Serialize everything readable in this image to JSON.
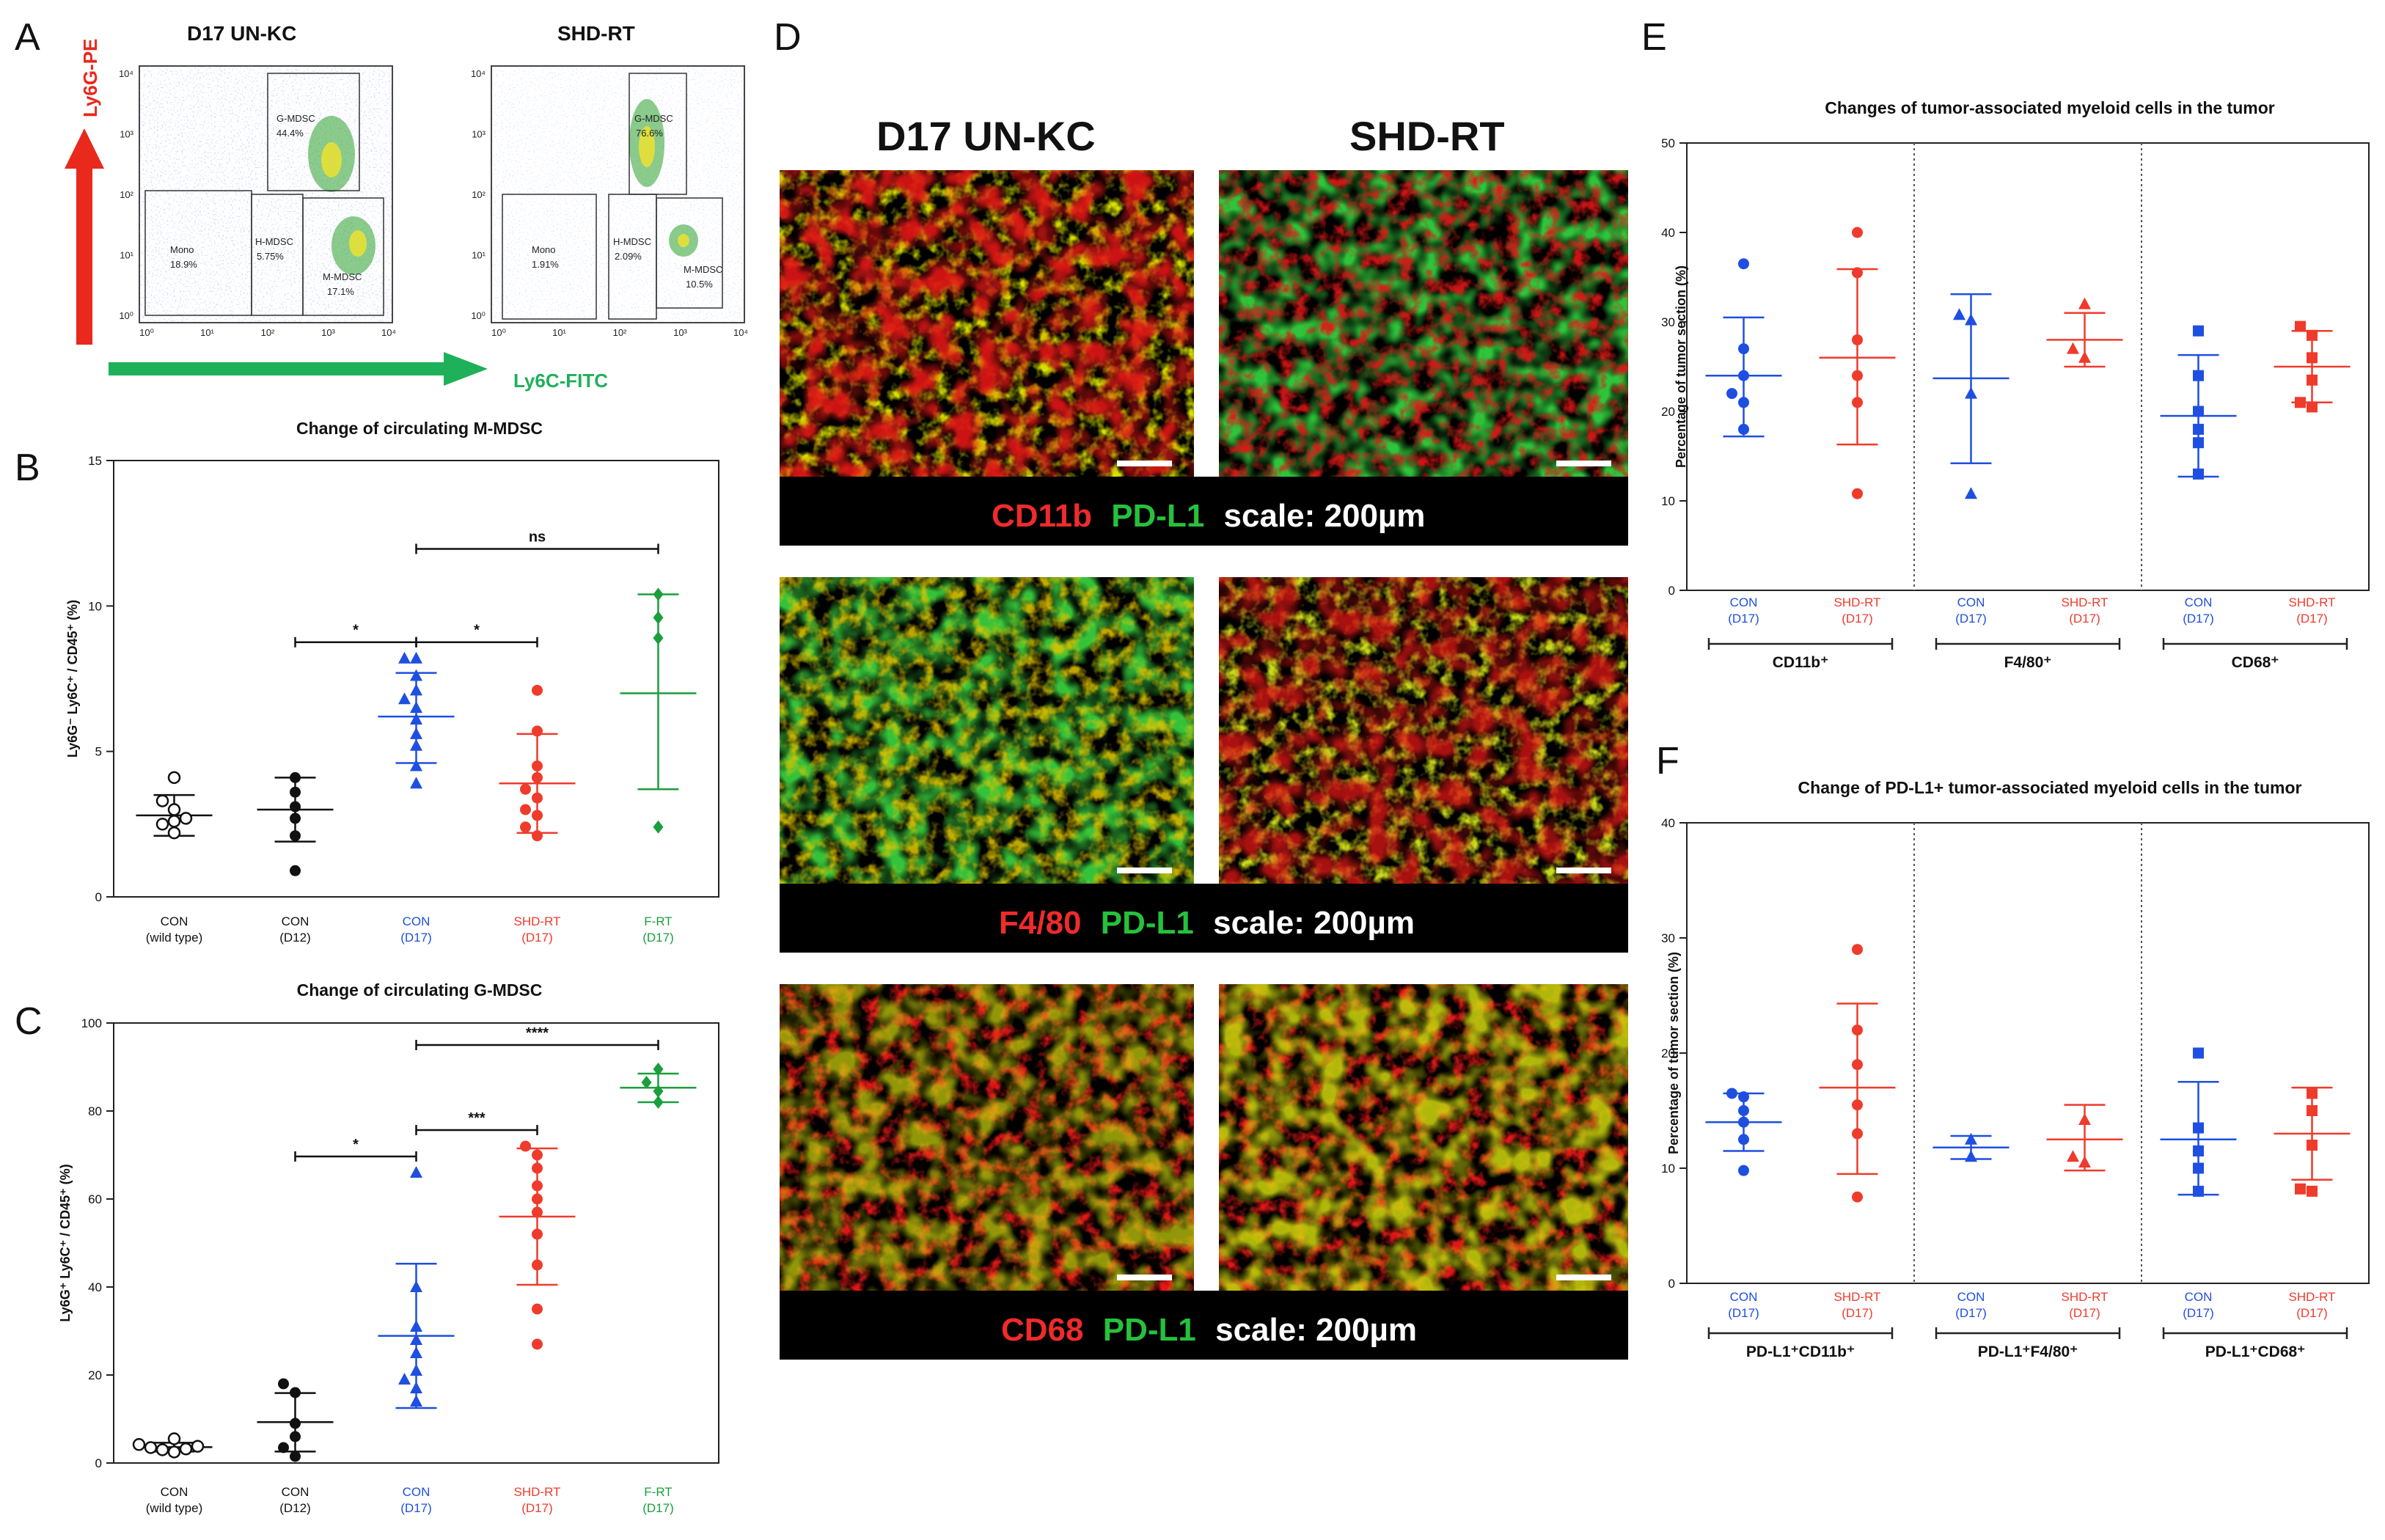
{
  "colors": {
    "black": "#111111",
    "blue": "#1e4fe0",
    "red": "#ef3b2c",
    "green": "#1b9e3c",
    "flow_arrow_red": "#e8291c",
    "flow_arrow_green": "#1fb05a"
  },
  "panel_letters": {
    "a": "A",
    "b": "B",
    "c": "C",
    "d": "D",
    "e": "E",
    "f": "F"
  },
  "panel_a": {
    "titles": [
      "D17 UN-KC",
      "SHD-RT"
    ],
    "y_axis_name": "Ly6G-PE",
    "x_axis_name": "Ly6C-FITC",
    "tick_labels": [
      "10⁰",
      "10¹",
      "10²",
      "10³",
      "10⁴"
    ],
    "plots": [
      {
        "gates": [
          {
            "name": "G-MDSC",
            "pct": "44.4%"
          },
          {
            "name": "Mono",
            "pct": "18.9%"
          },
          {
            "name": "H-MDSC",
            "pct": "5.75%"
          },
          {
            "name": "M-MDSC",
            "pct": "17.1%"
          }
        ]
      },
      {
        "gates": [
          {
            "name": "G-MDSC",
            "pct": "76.6%"
          },
          {
            "name": "Mono",
            "pct": "1.91%"
          },
          {
            "name": "H-MDSC",
            "pct": "2.09%"
          },
          {
            "name": "M-MDSC",
            "pct": "10.5%"
          }
        ]
      }
    ]
  },
  "panel_d": {
    "column_titles": [
      "D17 UN-KC",
      "SHD-RT"
    ],
    "rows": [
      {
        "marker": "CD11b",
        "stain": "PD-L1",
        "scale": "scale: 200µm"
      },
      {
        "marker": "F4/80",
        "stain": "PD-L1",
        "scale": "scale: 200µm"
      },
      {
        "marker": "CD68",
        "stain": "PD-L1",
        "scale": "scale: 200µm"
      }
    ]
  },
  "chart_data": [
    {
      "panel": "B",
      "type": "scatter",
      "title": "Change of circulating M-MDSC",
      "ylabel": "Ly6G⁻ Ly6C⁺ / CD45⁺ (%)",
      "ylim": [
        0,
        15
      ],
      "yticks": [
        0,
        5,
        10,
        15
      ],
      "categories": [
        {
          "label": "CON",
          "sub": "(wild type)",
          "color": "#111111",
          "marker": "circle-open"
        },
        {
          "label": "CON",
          "sub": "(D12)",
          "color": "#111111",
          "marker": "circle"
        },
        {
          "label": "CON",
          "sub": "(D17)",
          "color": "#1e4fe0",
          "marker": "triangle"
        },
        {
          "label": "SHD-RT",
          "sub": "(D17)",
          "color": "#ef3b2c",
          "marker": "circle"
        },
        {
          "label": "F-RT",
          "sub": "(D17)",
          "color": "#1b9e3c",
          "marker": "diamond"
        }
      ],
      "series": [
        {
          "points": [
            2.2,
            2.5,
            2.6,
            2.7,
            3.0,
            3.3,
            4.1
          ],
          "mean": 2.8,
          "sd_low": 2.1,
          "sd_high": 3.5
        },
        {
          "points": [
            0.9,
            2.1,
            2.7,
            3.1,
            3.6,
            4.1
          ],
          "mean": 3.0,
          "sd_low": 1.9,
          "sd_high": 4.1
        },
        {
          "points": [
            3.9,
            4.5,
            5.2,
            5.6,
            6.1,
            6.5,
            6.8,
            7.1,
            7.6,
            8.2,
            8.2
          ],
          "mean": 6.2,
          "sd_low": 4.6,
          "sd_high": 7.7
        },
        {
          "points": [
            2.1,
            2.4,
            2.8,
            3.0,
            3.4,
            3.7,
            4.1,
            4.5,
            5.7,
            7.1
          ],
          "mean": 3.9,
          "sd_low": 2.2,
          "sd_high": 5.6
        },
        {
          "points": [
            2.4,
            8.9,
            9.6,
            10.4
          ],
          "mean": 7.0,
          "sd_low": 3.7,
          "sd_high": 10.4
        }
      ],
      "significance": [
        {
          "from": 1,
          "to": 2,
          "label": "*"
        },
        {
          "from": 2,
          "to": 3,
          "label": "*"
        },
        {
          "from": 2,
          "to": 4,
          "label": "ns"
        }
      ]
    },
    {
      "panel": "C",
      "type": "scatter",
      "title": "Change of circulating G-MDSC",
      "ylabel": "Ly6G⁺ Ly6C⁺ / CD45⁺ (%)",
      "ylim": [
        0,
        100
      ],
      "yticks": [
        0,
        20,
        40,
        60,
        80,
        100
      ],
      "categories": [
        {
          "label": "CON",
          "sub": "(wild type)",
          "color": "#111111",
          "marker": "circle-open"
        },
        {
          "label": "CON",
          "sub": "(D12)",
          "color": "#111111",
          "marker": "circle"
        },
        {
          "label": "CON",
          "sub": "(D17)",
          "color": "#1e4fe0",
          "marker": "triangle"
        },
        {
          "label": "SHD-RT",
          "sub": "(D17)",
          "color": "#ef3b2c",
          "marker": "circle"
        },
        {
          "label": "F-RT",
          "sub": "(D17)",
          "color": "#1b9e3c",
          "marker": "diamond"
        }
      ],
      "series": [
        {
          "points": [
            2.5,
            3.0,
            3.2,
            3.5,
            3.8,
            4.2,
            5.5
          ],
          "mean": 3.6,
          "sd_low": 2.6,
          "sd_high": 4.6
        },
        {
          "points": [
            1.5,
            3.5,
            6.0,
            9.0,
            16.0,
            18.0
          ],
          "mean": 9.3,
          "sd_low": 2.6,
          "sd_high": 15.9
        },
        {
          "points": [
            14.0,
            17.0,
            19.0,
            21.0,
            25.0,
            28.0,
            31.0,
            40.0,
            66.0
          ],
          "mean": 28.9,
          "sd_low": 12.5,
          "sd_high": 45.3
        },
        {
          "points": [
            27.0,
            35.0,
            45.0,
            52.0,
            57.0,
            60.0,
            63.0,
            67.0,
            70.0,
            72.0
          ],
          "mean": 56.0,
          "sd_low": 40.5,
          "sd_high": 71.5
        },
        {
          "points": [
            82.0,
            84.5,
            86.5,
            89.5
          ],
          "mean": 85.3,
          "sd_low": 82.0,
          "sd_high": 88.5
        }
      ],
      "significance": [
        {
          "from": 1,
          "to": 2,
          "label": "*"
        },
        {
          "from": 2,
          "to": 3,
          "label": "***"
        },
        {
          "from": 2,
          "to": 4,
          "label": "****"
        }
      ]
    },
    {
      "panel": "E",
      "type": "scatter",
      "title": "Changes of tumor-associated myeloid cells in the tumor",
      "ylabel": "Percentage of tumor section (%)",
      "ylim": [
        0,
        50
      ],
      "yticks": [
        0,
        10,
        20,
        30,
        40,
        50
      ],
      "groups": [
        "CD11b⁺",
        "F4/80⁺",
        "CD68⁺"
      ],
      "categories": [
        {
          "label": "CON",
          "sub": "(D17)",
          "color": "#1e4fe0",
          "marker": "circle"
        },
        {
          "label": "SHD-RT",
          "sub": "(D17)",
          "color": "#ef3b2c",
          "marker": "circle"
        },
        {
          "label": "CON",
          "sub": "(D17)",
          "color": "#1e4fe0",
          "marker": "triangle"
        },
        {
          "label": "SHD-RT",
          "sub": "(D17)",
          "color": "#ef3b2c",
          "marker": "triangle"
        },
        {
          "label": "CON",
          "sub": "(D17)",
          "color": "#1e4fe0",
          "marker": "square"
        },
        {
          "label": "SHD-RT",
          "sub": "(D17)",
          "color": "#ef3b2c",
          "marker": "square"
        }
      ],
      "series": [
        {
          "points": [
            18.0,
            21.0,
            22.0,
            24.0,
            27.0,
            36.5
          ],
          "mean": 24.0,
          "sd_low": 17.2,
          "sd_high": 30.5
        },
        {
          "points": [
            10.8,
            21.0,
            24.0,
            28.0,
            35.5,
            40.0
          ],
          "mean": 26.0,
          "sd_low": 16.3,
          "sd_high": 35.9
        },
        {
          "points": [
            10.8,
            22.0,
            30.2,
            30.8
          ],
          "mean": 23.7,
          "sd_low": 14.2,
          "sd_high": 33.1
        },
        {
          "points": [
            26.0,
            27.0,
            32.0
          ],
          "mean": 28.0,
          "sd_low": 25.0,
          "sd_high": 31.0
        },
        {
          "points": [
            13.0,
            16.5,
            18.0,
            20.0,
            24.0,
            29.0
          ],
          "mean": 19.5,
          "sd_low": 12.7,
          "sd_high": 26.3
        },
        {
          "points": [
            20.5,
            21.0,
            23.5,
            26.0,
            28.5,
            29.5
          ],
          "mean": 25.0,
          "sd_low": 21.0,
          "sd_high": 29.0
        }
      ]
    },
    {
      "panel": "F",
      "type": "scatter",
      "title": "Change of PD-L1+ tumor-associated myeloid cells in the tumor",
      "ylabel": "Percentage of tumor section (%)",
      "ylim": [
        0,
        40
      ],
      "yticks": [
        0,
        10,
        20,
        30,
        40
      ],
      "groups": [
        "PD-L1⁺CD11b⁺",
        "PD-L1⁺F4/80⁺",
        "PD-L1⁺CD68⁺"
      ],
      "categories": [
        {
          "label": "CON",
          "sub": "(D17)",
          "color": "#1e4fe0",
          "marker": "circle"
        },
        {
          "label": "SHD-RT",
          "sub": "(D17)",
          "color": "#ef3b2c",
          "marker": "circle"
        },
        {
          "label": "CON",
          "sub": "(D17)",
          "color": "#1e4fe0",
          "marker": "triangle"
        },
        {
          "label": "SHD-RT",
          "sub": "(D17)",
          "color": "#ef3b2c",
          "marker": "triangle"
        },
        {
          "label": "CON",
          "sub": "(D17)",
          "color": "#1e4fe0",
          "marker": "square"
        },
        {
          "label": "SHD-RT",
          "sub": "(D17)",
          "color": "#ef3b2c",
          "marker": "square"
        }
      ],
      "series": [
        {
          "points": [
            9.8,
            12.5,
            14.0,
            15.0,
            16.2,
            16.5
          ],
          "mean": 14.0,
          "sd_low": 11.5,
          "sd_high": 16.5
        },
        {
          "points": [
            7.5,
            13.0,
            15.5,
            19.0,
            22.0,
            29.0
          ],
          "mean": 17.0,
          "sd_low": 9.5,
          "sd_high": 24.3
        },
        {
          "points": [
            11.0,
            12.5
          ],
          "mean": 11.8,
          "sd_low": 10.8,
          "sd_high": 12.8
        },
        {
          "points": [
            10.5,
            11.0,
            14.2
          ],
          "mean": 12.5,
          "sd_low": 9.8,
          "sd_high": 15.5
        },
        {
          "points": [
            8.0,
            10.0,
            11.5,
            13.5,
            20.0
          ],
          "mean": 12.5,
          "sd_low": 7.7,
          "sd_high": 17.5
        },
        {
          "points": [
            8.0,
            8.2,
            12.0,
            15.0,
            16.5
          ],
          "mean": 13.0,
          "sd_low": 9.0,
          "sd_high": 17.0
        }
      ]
    }
  ]
}
